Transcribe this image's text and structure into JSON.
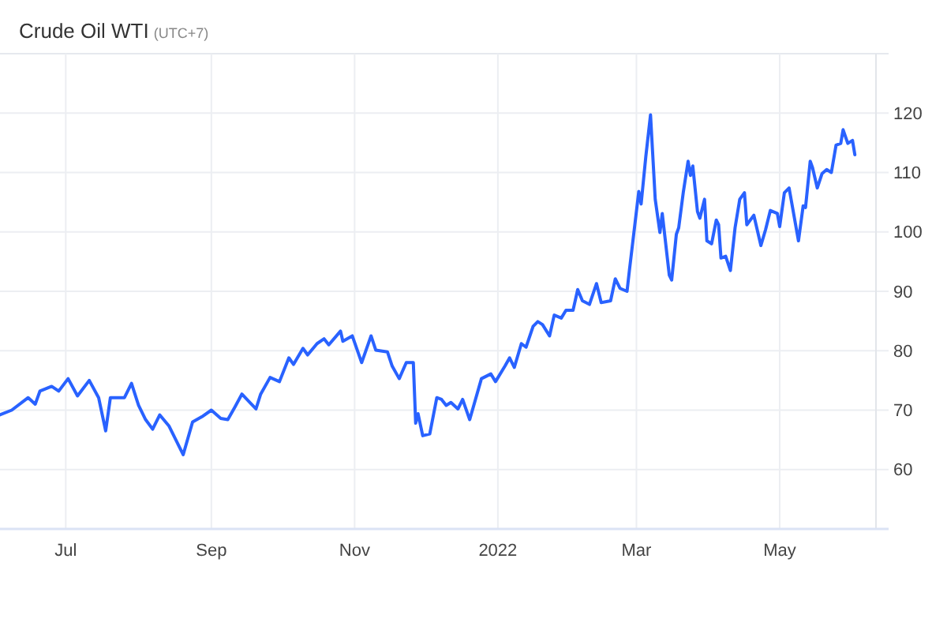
{
  "chart_data": {
    "type": "line",
    "title": "Crude Oil WTI",
    "subtitle": "(UTC+7)",
    "grid": true,
    "xlim": [
      "2021-06-03",
      "2022-06-11"
    ],
    "ylim": [
      50,
      130
    ],
    "xticks": [
      {
        "value": "2021-07-01",
        "label": "Jul"
      },
      {
        "value": "2021-09-01",
        "label": "Sep"
      },
      {
        "value": "2021-11-01",
        "label": "Nov"
      },
      {
        "value": "2022-01-01",
        "label": "2022"
      },
      {
        "value": "2022-03-01",
        "label": "Mar"
      },
      {
        "value": "2022-05-01",
        "label": "May"
      }
    ],
    "yticks": [
      60,
      70,
      80,
      90,
      100,
      110,
      120
    ],
    "x": [
      "2021-06-03",
      "2021-06-08",
      "2021-06-15",
      "2021-06-18",
      "2021-06-20",
      "2021-06-25",
      "2021-06-28",
      "2021-07-02",
      "2021-07-06",
      "2021-07-11",
      "2021-07-15",
      "2021-07-18",
      "2021-07-20",
      "2021-07-26",
      "2021-07-29",
      "2021-08-01",
      "2021-08-04",
      "2021-08-07",
      "2021-08-10",
      "2021-08-14",
      "2021-08-20",
      "2021-08-24",
      "2021-08-28",
      "2021-09-01",
      "2021-09-05",
      "2021-09-08",
      "2021-09-11",
      "2021-09-14",
      "2021-09-20",
      "2021-09-22",
      "2021-09-26",
      "2021-09-30",
      "2021-10-04",
      "2021-10-06",
      "2021-10-10",
      "2021-10-12",
      "2021-10-16",
      "2021-10-19",
      "2021-10-21",
      "2021-10-26",
      "2021-10-27",
      "2021-10-31",
      "2021-11-04",
      "2021-11-08",
      "2021-11-10",
      "2021-11-15",
      "2021-11-17",
      "2021-11-20",
      "2021-11-23",
      "2021-11-26",
      "2021-11-27",
      "2021-11-28",
      "2021-11-30",
      "2021-12-03",
      "2021-12-06",
      "2021-12-08",
      "2021-12-10",
      "2021-12-12",
      "2021-12-15",
      "2021-12-17",
      "2021-12-20",
      "2021-12-25",
      "2021-12-29",
      "2021-12-31",
      "2022-01-04",
      "2022-01-06",
      "2022-01-08",
      "2022-01-11",
      "2022-01-13",
      "2022-01-16",
      "2022-01-18",
      "2022-01-20",
      "2022-01-23",
      "2022-01-25",
      "2022-01-28",
      "2022-01-30",
      "2022-02-02",
      "2022-02-04",
      "2022-02-06",
      "2022-02-09",
      "2022-02-12",
      "2022-02-14",
      "2022-02-18",
      "2022-02-20",
      "2022-02-22",
      "2022-02-25",
      "2022-02-26",
      "2022-03-02",
      "2022-03-03",
      "2022-03-05",
      "2022-03-07",
      "2022-03-09",
      "2022-03-11",
      "2022-03-12",
      "2022-03-15",
      "2022-03-16",
      "2022-03-18",
      "2022-03-19",
      "2022-03-21",
      "2022-03-23",
      "2022-03-24",
      "2022-03-25",
      "2022-03-27",
      "2022-03-28",
      "2022-03-30",
      "2022-03-31",
      "2022-04-02",
      "2022-04-04",
      "2022-04-05",
      "2022-04-06",
      "2022-04-08",
      "2022-04-10",
      "2022-04-12",
      "2022-04-14",
      "2022-04-16",
      "2022-04-17",
      "2022-04-20",
      "2022-04-23",
      "2022-04-25",
      "2022-04-27",
      "2022-04-30",
      "2022-05-01",
      "2022-05-03",
      "2022-05-05",
      "2022-05-09",
      "2022-05-11",
      "2022-05-12",
      "2022-05-14",
      "2022-05-15",
      "2022-05-17",
      "2022-05-19",
      "2022-05-21",
      "2022-05-23",
      "2022-05-25",
      "2022-05-27",
      "2022-05-28",
      "2022-05-30",
      "2022-06-01",
      "2022-06-02"
    ],
    "series": [
      {
        "color": "#2962ff",
        "values": [
          69.2,
          70,
          72.1,
          71,
          73.2,
          74,
          73.2,
          75.3,
          72.4,
          75,
          72.1,
          66.5,
          72.1,
          72.1,
          74.5,
          70.8,
          68.4,
          66.8,
          69.2,
          67.3,
          62.5,
          68,
          68.9,
          70,
          68.6,
          68.4,
          70.5,
          72.7,
          70.2,
          72.7,
          75.5,
          74.8,
          78.8,
          77.7,
          80.4,
          79.3,
          81.2,
          82,
          81,
          83.3,
          81.6,
          82.5,
          78,
          82.5,
          80.1,
          79.8,
          77.4,
          75.3,
          78,
          78,
          67.8,
          69.4,
          65.7,
          66,
          72.1,
          71.8,
          70.8,
          71.3,
          70.2,
          71.8,
          68.4,
          75.3,
          76.1,
          74.8,
          77.4,
          78.8,
          77.2,
          81.2,
          80.6,
          84.1,
          84.9,
          84.4,
          82.5,
          86,
          85.5,
          86.8,
          86.8,
          90.3,
          88.4,
          87.8,
          91.3,
          88.1,
          88.4,
          92.1,
          90.5,
          90,
          93.5,
          106.8,
          104.7,
          112.7,
          119.7,
          105.5,
          99.9,
          103.1,
          92.7,
          91.9,
          99.6,
          100.7,
          106.8,
          111.9,
          109.5,
          111.1,
          103.4,
          102.3,
          105.5,
          98.5,
          98,
          102,
          101.2,
          95.6,
          95.9,
          93.5,
          100.7,
          105.5,
          106.6,
          101.2,
          102.8,
          97.7,
          100.4,
          103.6,
          103.1,
          100.9,
          106.6,
          107.4,
          98.5,
          104.4,
          104.1,
          111.9,
          110.8,
          107.4,
          109.8,
          110.5,
          110,
          114.6,
          114.9,
          117.2,
          114.9,
          115.4,
          113
        ]
      }
    ]
  }
}
